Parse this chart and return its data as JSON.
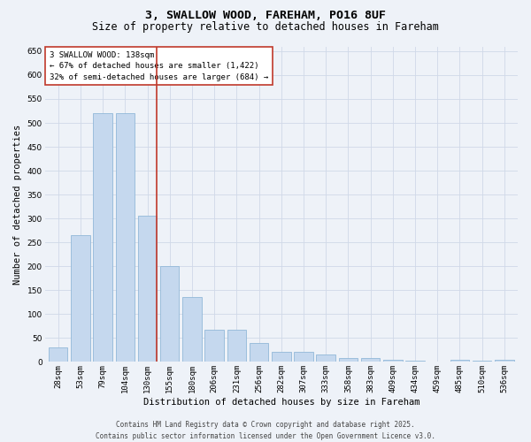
{
  "title_line1": "3, SWALLOW WOOD, FAREHAM, PO16 8UF",
  "title_line2": "Size of property relative to detached houses in Fareham",
  "categories": [
    "28sqm",
    "53sqm",
    "79sqm",
    "104sqm",
    "130sqm",
    "155sqm",
    "180sqm",
    "206sqm",
    "231sqm",
    "256sqm",
    "282sqm",
    "307sqm",
    "333sqm",
    "358sqm",
    "383sqm",
    "409sqm",
    "434sqm",
    "459sqm",
    "485sqm",
    "510sqm",
    "536sqm"
  ],
  "values": [
    30,
    265,
    520,
    520,
    305,
    200,
    135,
    68,
    68,
    40,
    22,
    22,
    15,
    8,
    8,
    5,
    2,
    0,
    5,
    2,
    5
  ],
  "bar_color": "#c5d8ee",
  "bar_edgecolor": "#92b8d8",
  "vline_x_index": 4,
  "vline_color": "#c0392b",
  "xlabel": "Distribution of detached houses by size in Fareham",
  "ylabel": "Number of detached properties",
  "ylim": [
    0,
    660
  ],
  "yticks": [
    0,
    50,
    100,
    150,
    200,
    250,
    300,
    350,
    400,
    450,
    500,
    550,
    600,
    650
  ],
  "annotation_title": "3 SWALLOW WOOD: 138sqm",
  "annotation_line1": "← 67% of detached houses are smaller (1,422)",
  "annotation_line2": "32% of semi-detached houses are larger (684) →",
  "annotation_box_facecolor": "#ffffff",
  "annotation_box_edgecolor": "#c0392b",
  "grid_color": "#d0d8e8",
  "background_color": "#eef2f8",
  "footer_line1": "Contains HM Land Registry data © Crown copyright and database right 2025.",
  "footer_line2": "Contains public sector information licensed under the Open Government Licence v3.0.",
  "title_fontsize": 9.5,
  "subtitle_fontsize": 8.5,
  "axis_label_fontsize": 7.5,
  "tick_fontsize": 6.5,
  "annotation_fontsize": 6.5,
  "footer_fontsize": 5.5
}
